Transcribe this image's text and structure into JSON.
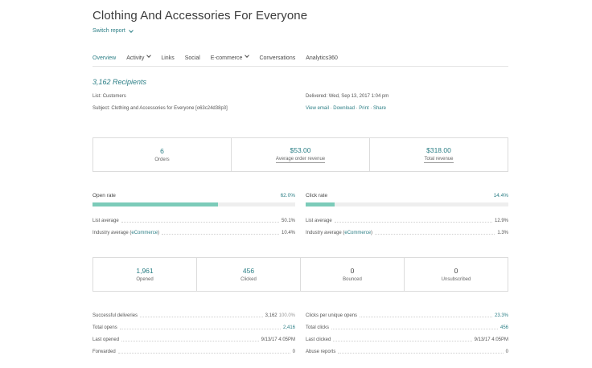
{
  "header": {
    "title": "Clothing And Accessories For Everyone",
    "switch_label": "Switch report"
  },
  "tabs": [
    {
      "label": "Overview",
      "active": true,
      "dropdown": false
    },
    {
      "label": "Activity",
      "active": false,
      "dropdown": true
    },
    {
      "label": "Links",
      "active": false,
      "dropdown": false
    },
    {
      "label": "Social",
      "active": false,
      "dropdown": false
    },
    {
      "label": "E-commerce",
      "active": false,
      "dropdown": true
    },
    {
      "label": "Conversations",
      "active": false,
      "dropdown": false
    },
    {
      "label": "Analytics360",
      "active": false,
      "dropdown": false
    }
  ],
  "summary": {
    "recipients": "3,162 Recipients",
    "list_label": "List:",
    "list_value": "Customers",
    "subject_label": "Subject:",
    "subject_value": "Clothing and Accessories for Everyone [o63c24d38p3]",
    "delivered_label": "Delivered:",
    "delivered_value": "Wed, Sep 13, 2017 1:04 pm",
    "links": {
      "view_email": "View email",
      "download": "Download",
      "print": "Print",
      "share": "Share",
      "sep": " · "
    }
  },
  "ecommerce": [
    {
      "value": "6",
      "label": "Orders"
    },
    {
      "value": "$53.00",
      "label": "Average order revenue"
    },
    {
      "value": "$318.00",
      "label": "Total revenue"
    }
  ],
  "rates": {
    "open": {
      "label": "Open rate",
      "value": "62.0%",
      "fraction": 0.62,
      "list_avg_label": "List average",
      "list_avg": "50.1%",
      "industry_label": "Industry average (",
      "industry_link": "eCommerce",
      "industry_close": ")",
      "industry_avg": "10.4%"
    },
    "click": {
      "label": "Click rate",
      "value": "14.4%",
      "fraction": 0.144,
      "list_avg_label": "List average",
      "list_avg": "12.9%",
      "industry_label": "Industry average (",
      "industry_link": "eCommerce",
      "industry_close": ")",
      "industry_avg": "1.3%"
    }
  },
  "counts": [
    {
      "value": "1,961",
      "label": "Opened"
    },
    {
      "value": "456",
      "label": "Clicked"
    },
    {
      "value": "0",
      "label": "Bounced"
    },
    {
      "value": "0",
      "label": "Unsubscribed"
    }
  ],
  "details_left": [
    {
      "label": "Successful deliveries",
      "value": "3,162",
      "sub": "100.0%",
      "teal": false
    },
    {
      "label": "Total opens",
      "value": "2,416",
      "sub": "",
      "teal": true
    },
    {
      "label": "Last opened",
      "value": "9/13/17 4:05PM",
      "sub": "",
      "teal": false
    },
    {
      "label": "Forwarded",
      "value": "0",
      "sub": "",
      "teal": false
    }
  ],
  "details_right": [
    {
      "label": "Clicks per unique opens",
      "value": "23.3%",
      "sub": "",
      "teal": true
    },
    {
      "label": "Total clicks",
      "value": "456",
      "sub": "",
      "teal": true
    },
    {
      "label": "Last clicked",
      "value": "9/13/17 4:05PM",
      "sub": "",
      "teal": false
    },
    {
      "label": "Abuse reports",
      "value": "0",
      "sub": "",
      "teal": false
    }
  ],
  "colors": {
    "accent": "#2c7f86",
    "bar_fill": "#7ccbb9",
    "bar_track": "#eeeeee"
  }
}
